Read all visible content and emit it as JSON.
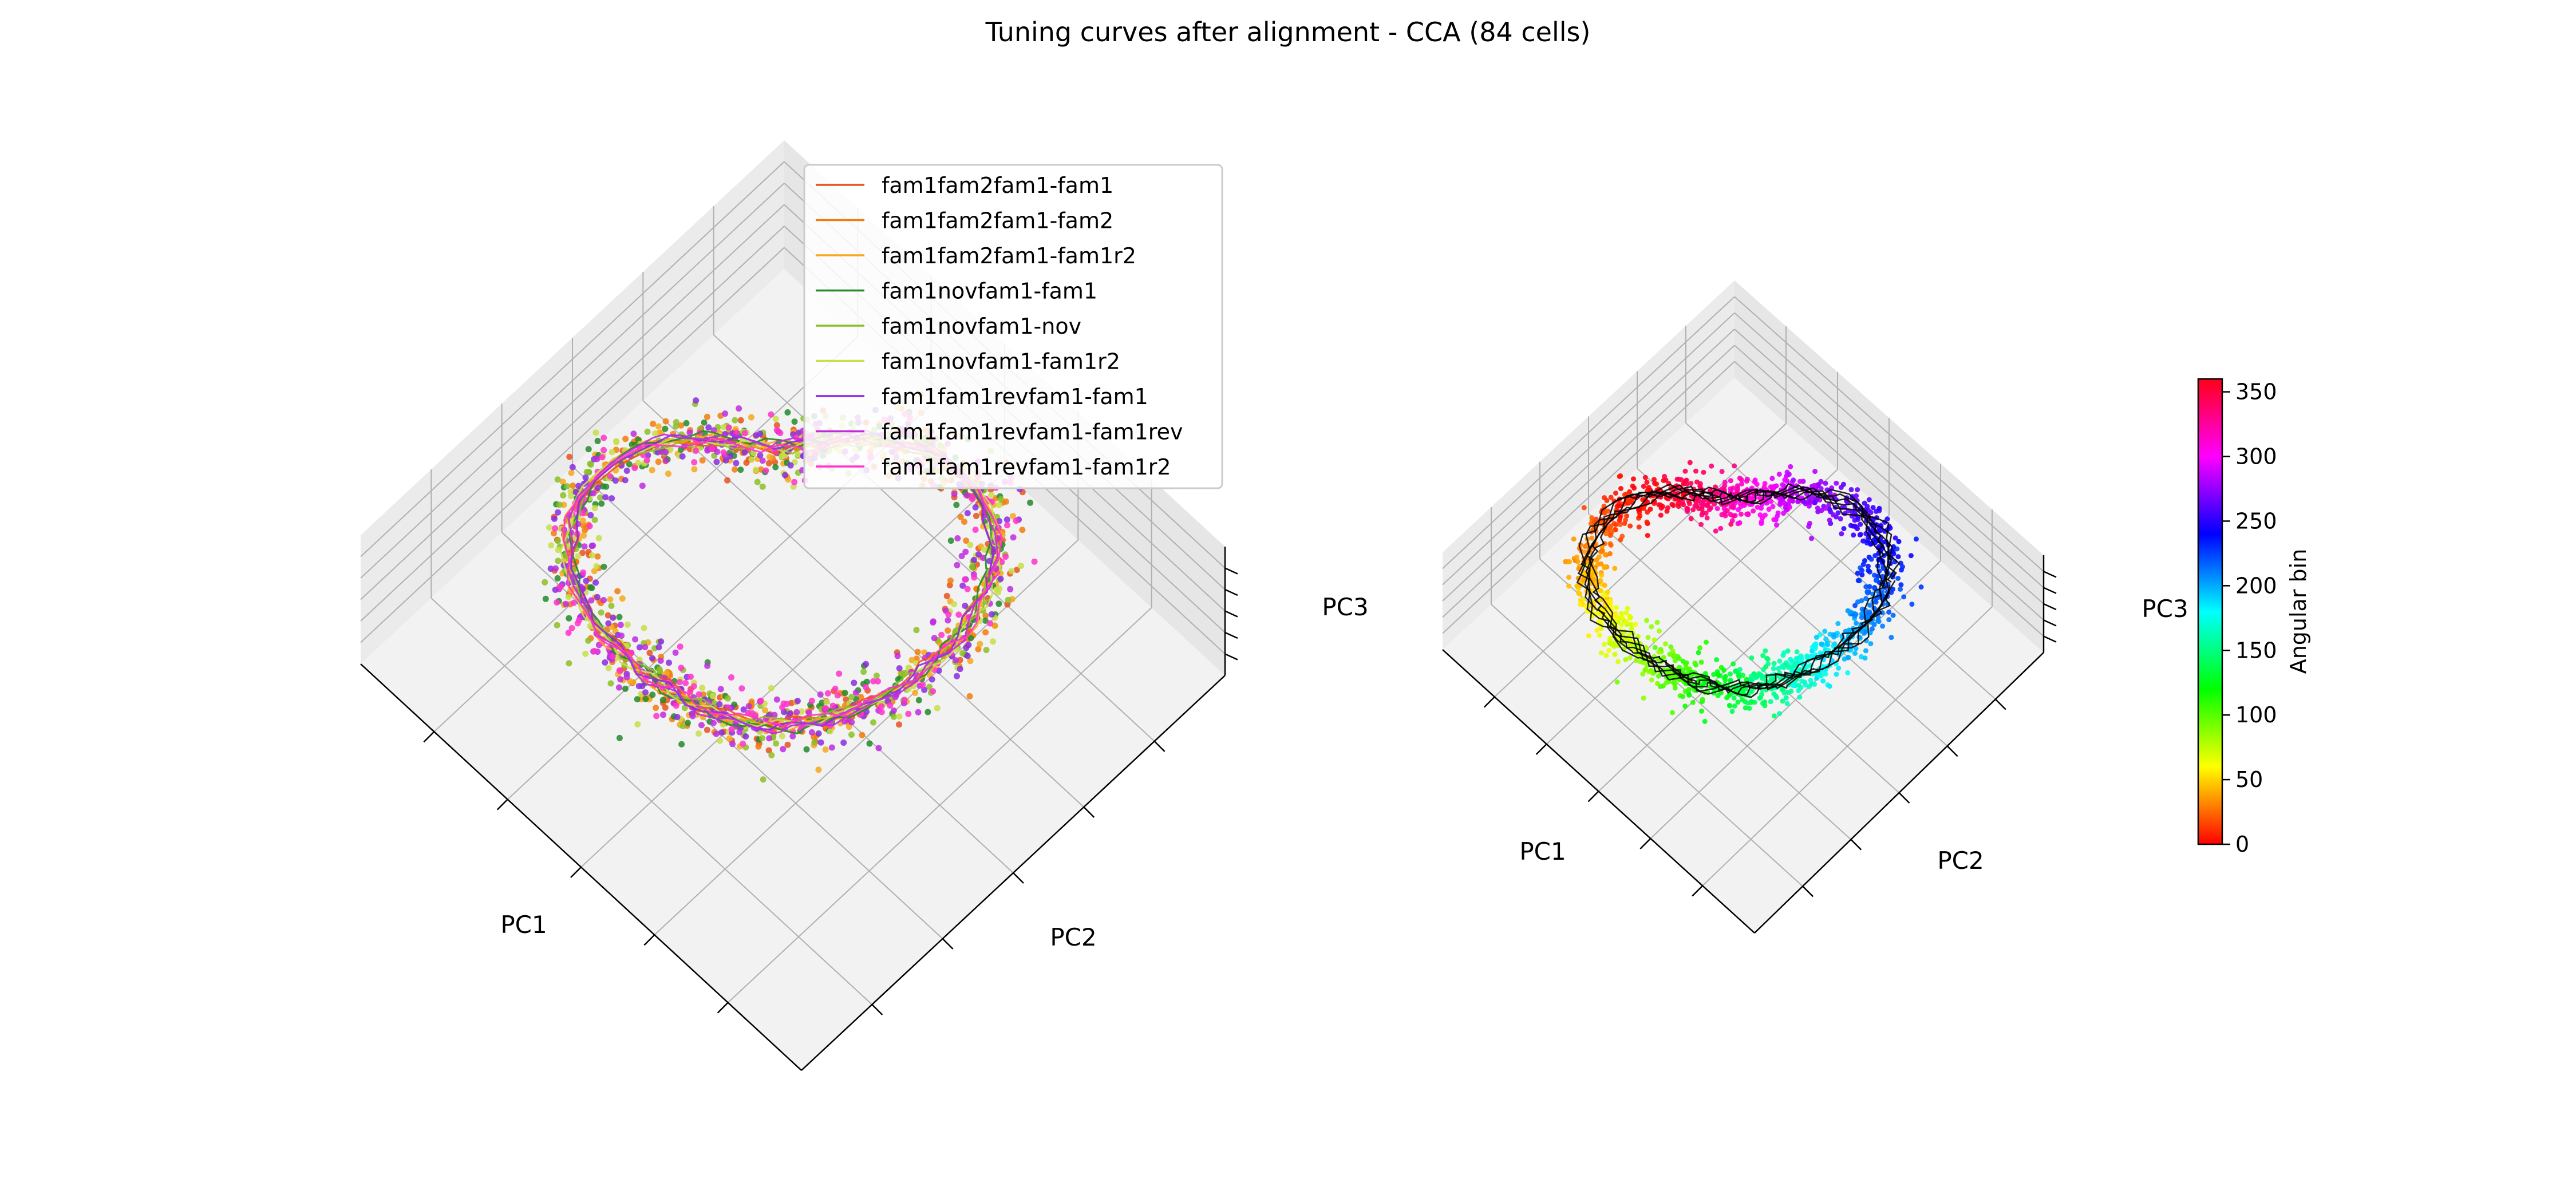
{
  "figure": {
    "title": "Tuning curves after alignment - CCA (84 cells)"
  },
  "chart_data": [
    {
      "type": "scatter",
      "projection": "3d",
      "xlabel": "PC1",
      "ylabel": "PC2",
      "zlabel": "PC3",
      "grid": true,
      "legend_position": "top-right",
      "description_points": "ring-shaped point clouds with mean trajectory line per series",
      "series": [
        {
          "name": "fam1fam2fam1-fam1",
          "color": "#e8531c"
        },
        {
          "name": "fam1fam2fam1-fam2",
          "color": "#f27c0c"
        },
        {
          "name": "fam1fam2fam1-fam1r2",
          "color": "#f5a91c"
        },
        {
          "name": "fam1novfam1-fam1",
          "color": "#238b2a"
        },
        {
          "name": "fam1novfam1-nov",
          "color": "#8cbf26"
        },
        {
          "name": "fam1novfam1-fam1r2",
          "color": "#c9de4a"
        },
        {
          "name": "fam1fam1revfam1-fam1",
          "color": "#8a2be2"
        },
        {
          "name": "fam1fam1revfam1-fam1rev",
          "color": "#c02ce0"
        },
        {
          "name": "fam1fam1revfam1-fam1r2",
          "color": "#ff33cc"
        }
      ]
    },
    {
      "type": "scatter",
      "projection": "3d",
      "xlabel": "PC1",
      "ylabel": "PC2",
      "zlabel": "PC3",
      "grid": true,
      "color_by": "Angular bin",
      "colormap": "hsv",
      "trajectory_color": "#000000",
      "colorbar": {
        "label": "Angular bin",
        "range": [
          0,
          360
        ],
        "ticks": [
          "0",
          "50",
          "100",
          "150",
          "200",
          "250",
          "300",
          "350"
        ]
      }
    }
  ]
}
